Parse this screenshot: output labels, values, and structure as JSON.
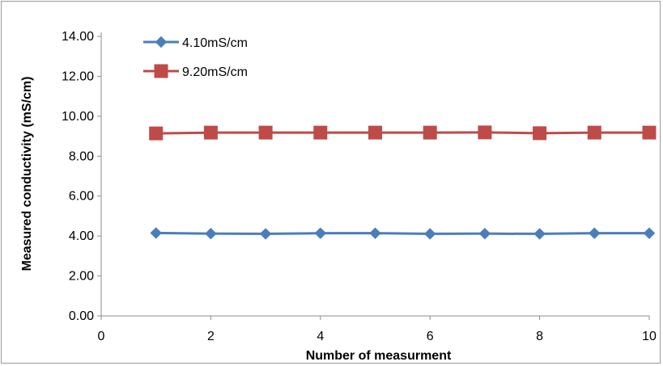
{
  "chart_data": {
    "type": "line",
    "title": "",
    "xlabel": "Number of measurment",
    "ylabel": "Measured conductivity (mS/cm)",
    "xlim": [
      0,
      10
    ],
    "ylim": [
      0,
      14
    ],
    "x_ticks": [
      0,
      2,
      4,
      6,
      8,
      10
    ],
    "y_ticks": [
      "0.00",
      "2.00",
      "4.00",
      "6.00",
      "8.00",
      "10.00",
      "12.00",
      "14.00"
    ],
    "grid": false,
    "legend_position": "top-left",
    "x": [
      1,
      2,
      3,
      4,
      5,
      6,
      7,
      8,
      9,
      10
    ],
    "series": [
      {
        "name": "4.10mS/cm",
        "color": "#4a7ebb",
        "marker": "diamond",
        "values": [
          4.15,
          4.12,
          4.11,
          4.14,
          4.14,
          4.11,
          4.12,
          4.11,
          4.14,
          4.14
        ]
      },
      {
        "name": "9.20mS/cm",
        "color": "#be4b48",
        "marker": "square",
        "values": [
          9.14,
          9.18,
          9.18,
          9.18,
          9.18,
          9.18,
          9.19,
          9.15,
          9.18,
          9.18
        ]
      }
    ]
  }
}
